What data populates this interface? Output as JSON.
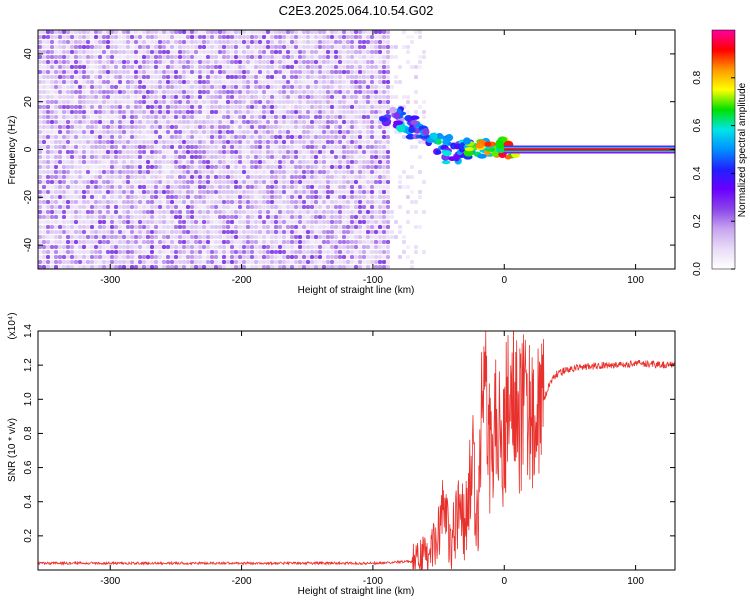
{
  "title": "C2E3.2025.064.10.54.G02",
  "colors": {
    "snr_line": "#e8312c",
    "baseline_band": "#e8312c",
    "colormap": [
      "#ffffff",
      "#e9dcf7",
      "#c9a5f0",
      "#8a46e8",
      "#6a00ff",
      "#2020ff",
      "#0090ff",
      "#00e6e6",
      "#00e000",
      "#ffff00",
      "#ff9900",
      "#ff0000",
      "#ff00a0"
    ]
  },
  "chart_data": [
    {
      "type": "heatmap",
      "xlabel": "Height of straight line (km)",
      "ylabel": "Frequency (Hz)",
      "xlim": [
        -355,
        130
      ],
      "ylim": [
        -50,
        50
      ],
      "xticks": [
        -300,
        -200,
        -100,
        0,
        100
      ],
      "yticks": [
        -40,
        -20,
        0,
        20,
        40
      ],
      "colorbar": {
        "label": "Normalized spectral amplitude",
        "range": [
          0,
          1
        ],
        "ticks": [
          0.0,
          0.2,
          0.4,
          0.6,
          0.8
        ]
      },
      "features": {
        "noise_region_x": [
          -355,
          -90
        ],
        "transition_region_x": [
          -90,
          0
        ],
        "carrier_line_x": [
          0,
          130
        ],
        "carrier_frequency_hz": 0,
        "blob_track": [
          {
            "x": -85,
            "y": 14,
            "level": 0.5
          },
          {
            "x": -75,
            "y": 11,
            "level": 0.6
          },
          {
            "x": -65,
            "y": 8,
            "level": 0.55
          },
          {
            "x": -55,
            "y": 6,
            "level": 0.6
          },
          {
            "x": -45,
            "y": 2,
            "level": 0.65
          },
          {
            "x": -38,
            "y": -2,
            "level": 0.6
          },
          {
            "x": -30,
            "y": 0,
            "level": 0.6
          },
          {
            "x": -22,
            "y": 1,
            "level": 0.75
          },
          {
            "x": -14,
            "y": 0,
            "level": 0.85
          },
          {
            "x": -6,
            "y": 1,
            "level": 0.9
          },
          {
            "x": 3,
            "y": 0,
            "level": 0.95
          }
        ]
      }
    },
    {
      "type": "line",
      "xlabel": "Height of straight line (km)",
      "ylabel": "SNR (10 * v/v)",
      "y_multiplier": "(x10⁴)",
      "xlim": [
        -355,
        130
      ],
      "ylim": [
        0,
        1.4
      ],
      "xticks": [
        -300,
        -200,
        -100,
        0,
        100
      ],
      "yticks": [
        0.2,
        0.4,
        0.6,
        0.8,
        1.0,
        1.2,
        1.4
      ],
      "series": [
        {
          "x": [
            -355,
            -300,
            -250,
            -200,
            -150,
            -100,
            -70,
            -60,
            -55,
            -50,
            -45,
            -40,
            -35,
            -30,
            -25,
            -20,
            -15,
            -10,
            -5,
            0,
            5,
            10,
            15,
            20,
            25,
            30,
            35,
            40,
            50,
            60,
            80,
            100,
            130
          ],
          "y": [
            0.04,
            0.04,
            0.04,
            0.04,
            0.04,
            0.04,
            0.05,
            0.08,
            0.12,
            0.25,
            0.35,
            0.15,
            0.4,
            0.25,
            0.7,
            0.3,
            1.3,
            0.6,
            1.0,
            0.75,
            1.3,
            0.85,
            0.95,
            0.9,
            0.95,
            1.0,
            1.1,
            1.15,
            1.18,
            1.19,
            1.2,
            1.21,
            1.2
          ]
        }
      ]
    }
  ]
}
